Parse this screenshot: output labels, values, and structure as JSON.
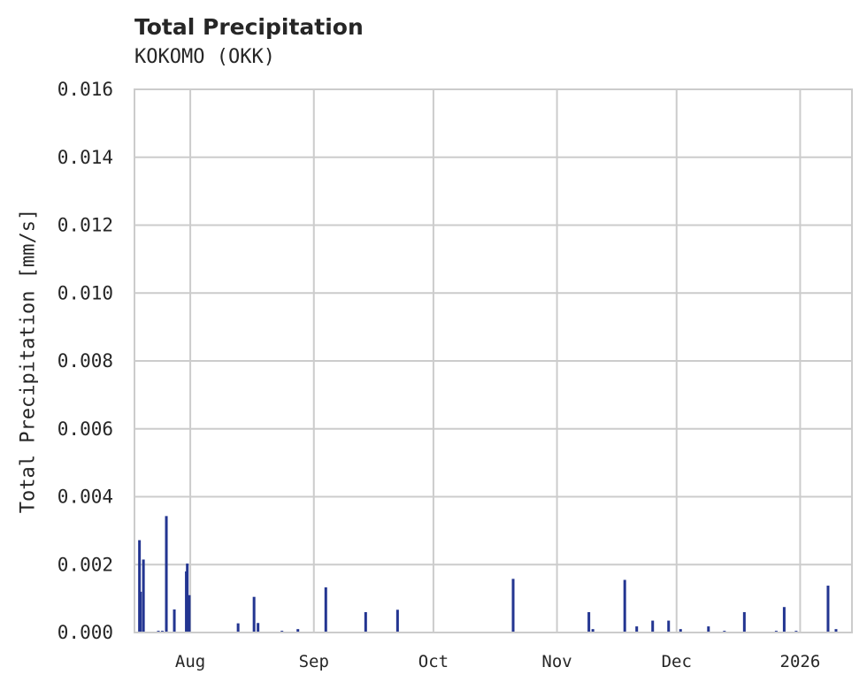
{
  "chart_data": {
    "type": "bar",
    "title": "Total Precipitation",
    "subtitle": "KOKOMO (OKK)",
    "xlabel": "",
    "ylabel": "Total Precipitation [mm/s]",
    "ylim": [
      0,
      0.016
    ],
    "xlim": [
      "2025-07-18",
      "2026-01-14"
    ],
    "grid": true,
    "legend": null,
    "y_ticks": [
      "0.000",
      "0.002",
      "0.004",
      "0.006",
      "0.008",
      "0.010",
      "0.012",
      "0.014",
      "0.016"
    ],
    "x_ticks": [
      {
        "label": "Aug",
        "date": "2025-08-01"
      },
      {
        "label": "Sep",
        "date": "2025-09-01"
      },
      {
        "label": "Oct",
        "date": "2025-10-01"
      },
      {
        "label": "Nov",
        "date": "2025-11-01"
      },
      {
        "label": "Dec",
        "date": "2025-12-01"
      },
      {
        "label": "2026",
        "date": "2026-01-01"
      }
    ],
    "bar_color": "#233591",
    "series": [
      {
        "name": "Total Precipitation",
        "points": [
          {
            "x": "2025-07-19T06",
            "y": 0.00272
          },
          {
            "x": "2025-07-19T12",
            "y": 0.0012
          },
          {
            "x": "2025-07-20T06",
            "y": 0.00215
          },
          {
            "x": "2025-07-24",
            "y": 5e-05
          },
          {
            "x": "2025-07-25",
            "y": 5e-05
          },
          {
            "x": "2025-07-26",
            "y": 0.00343
          },
          {
            "x": "2025-07-28",
            "y": 0.00068
          },
          {
            "x": "2025-07-31T00",
            "y": 0.0018
          },
          {
            "x": "2025-07-31T06",
            "y": 0.00203
          },
          {
            "x": "2025-07-31T18",
            "y": 0.0011
          },
          {
            "x": "2025-08-13",
            "y": 0.00027
          },
          {
            "x": "2025-08-17",
            "y": 0.00105
          },
          {
            "x": "2025-08-18",
            "y": 0.00028
          },
          {
            "x": "2025-08-24",
            "y": 5e-05
          },
          {
            "x": "2025-08-28",
            "y": 0.0001
          },
          {
            "x": "2025-09-04",
            "y": 0.00133
          },
          {
            "x": "2025-09-14",
            "y": 0.0006
          },
          {
            "x": "2025-09-22",
            "y": 0.00067
          },
          {
            "x": "2025-10-21",
            "y": 0.00158
          },
          {
            "x": "2025-11-09",
            "y": 0.0006
          },
          {
            "x": "2025-11-10",
            "y": 0.0001
          },
          {
            "x": "2025-11-18",
            "y": 0.00155
          },
          {
            "x": "2025-11-21",
            "y": 0.00018
          },
          {
            "x": "2025-11-25",
            "y": 0.00035
          },
          {
            "x": "2025-11-29",
            "y": 0.00035
          },
          {
            "x": "2025-12-02",
            "y": 0.0001
          },
          {
            "x": "2025-12-09",
            "y": 0.00018
          },
          {
            "x": "2025-12-13",
            "y": 5e-05
          },
          {
            "x": "2025-12-18",
            "y": 0.0006
          },
          {
            "x": "2025-12-26",
            "y": 5e-05
          },
          {
            "x": "2025-12-28",
            "y": 0.00075
          },
          {
            "x": "2025-12-31",
            "y": 5e-05
          },
          {
            "x": "2026-01-08",
            "y": 0.00138
          },
          {
            "x": "2026-01-10",
            "y": 0.0001
          }
        ]
      }
    ]
  }
}
